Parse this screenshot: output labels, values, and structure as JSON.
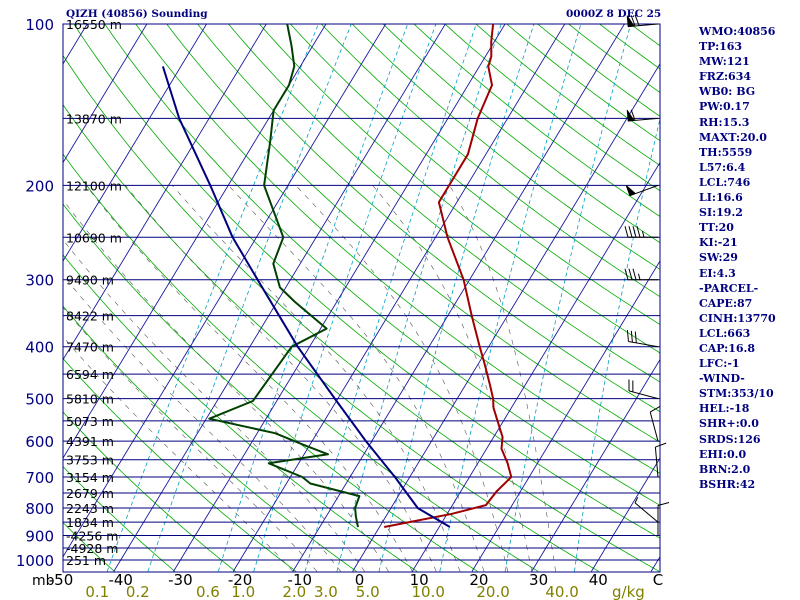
{
  "header": {
    "station": "QIZH (40856) Sounding",
    "time": "0000Z  8 DEC 25"
  },
  "indices": [
    "WMO:40856",
    "TP:163",
    "MW:121",
    "FRZ:634",
    "WB0: BG",
    "PW:0.17",
    "RH:15.3",
    "MAXT:20.0",
    "TH:5559",
    "L57:6.4",
    "LCL:746",
    "LI:16.6",
    "SI:19.2",
    "TT:20",
    "KI:-21",
    "SW:29",
    "EI:4.3",
    "-PARCEL-",
    "CAPE:87",
    "CINH:13770",
    "LCL:663",
    "CAP:16.8",
    "LFC:-1",
    "-WIND-",
    "STM:353/10",
    "HEL:-18",
    "SHR+:0.0",
    "SRDS:126",
    "EHI:0.0",
    "BRN:2.0",
    "BSHR:42"
  ],
  "colors": {
    "isobar": "#000080",
    "isotherm": "#1a1aa0",
    "dry_adiabat": "#00aa00",
    "moist_adiabat": "#555555",
    "mixing_ratio": "#00a0c0",
    "temperature": "#a00000",
    "dewpoint": "#004000",
    "parcel": "#000080",
    "x_labels": "#000000",
    "mixing_labels": "#808000"
  },
  "chart_data": {
    "type": "line",
    "title": "",
    "xlabel": "C",
    "ylabel": "mb",
    "y_scale": "log-pressure",
    "ylim": [
      1000,
      100
    ],
    "xlim": [
      -50,
      50
    ],
    "pressure_ticks": [
      {
        "p": 100,
        "label": "100"
      },
      {
        "p": 200,
        "label": "200"
      },
      {
        "p": 300,
        "label": "300"
      },
      {
        "p": 400,
        "label": "400"
      },
      {
        "p": 500,
        "label": "500"
      },
      {
        "p": 600,
        "label": "600"
      },
      {
        "p": 700,
        "label": "700"
      },
      {
        "p": 800,
        "label": "800"
      },
      {
        "p": 900,
        "label": "900"
      },
      {
        "p": 1000,
        "label": "1000"
      }
    ],
    "temperature_ticks": [
      {
        "t": -50,
        "label": "-50"
      },
      {
        "t": -40,
        "label": "-40"
      },
      {
        "t": -30,
        "label": "-30"
      },
      {
        "t": -20,
        "label": "-20"
      },
      {
        "t": -10,
        "label": "-10"
      },
      {
        "t": 0,
        "label": "0"
      },
      {
        "t": 10,
        "label": "10"
      },
      {
        "t": 20,
        "label": "20"
      },
      {
        "t": 30,
        "label": "30"
      },
      {
        "t": 40,
        "label": "40"
      }
    ],
    "mixing_ratio_ticks": [
      {
        "w": 0.1,
        "label": "0.1"
      },
      {
        "w": 0.2,
        "label": "0.2"
      },
      {
        "w": 0.6,
        "label": "0.6"
      },
      {
        "w": 1.0,
        "label": "1.0"
      },
      {
        "w": 2.0,
        "label": "2.0"
      },
      {
        "w": 3.0,
        "label": "3.0"
      },
      {
        "w": 5.0,
        "label": "5.0"
      },
      {
        "w": 10.0,
        "label": "10.0"
      },
      {
        "w": 20.0,
        "label": "20.0"
      },
      {
        "w": 40.0,
        "label": "40.0"
      }
    ],
    "mixing_ratio_unit": "g/kg",
    "height_labels": [
      {
        "p": 100,
        "label": "16550 m"
      },
      {
        "p": 150,
        "label": "13870 m"
      },
      {
        "p": 200,
        "label": "12100 m"
      },
      {
        "p": 250,
        "label": "10690 m"
      },
      {
        "p": 300,
        "label": "9490 m"
      },
      {
        "p": 350,
        "label": "8422 m"
      },
      {
        "p": 400,
        "label": "7470 m"
      },
      {
        "p": 450,
        "label": "6594 m"
      },
      {
        "p": 500,
        "label": "5810 m"
      },
      {
        "p": 550,
        "label": "5073 m"
      },
      {
        "p": 600,
        "label": "4391 m"
      },
      {
        "p": 650,
        "label": "3753 m"
      },
      {
        "p": 700,
        "label": "3154 m"
      },
      {
        "p": 750,
        "label": "2679 m"
      },
      {
        "p": 800,
        "label": "2243 m"
      },
      {
        "p": 850,
        "label": "1834 m"
      },
      {
        "p": 900,
        "label": "-4256 m"
      },
      {
        "p": 950,
        "label": "-4928 m"
      },
      {
        "p": 1000,
        "label": "251 m"
      }
    ],
    "series": [
      {
        "key": "temperature",
        "points": [
          [
            868,
            0.8
          ],
          [
            820,
            10.8
          ],
          [
            790,
            15.6
          ],
          [
            745,
            16.0
          ],
          [
            700,
            17.0
          ],
          [
            660,
            15.0
          ],
          [
            620,
            12.5
          ],
          [
            590,
            11.5
          ],
          [
            550,
            9.0
          ],
          [
            520,
            7.0
          ],
          [
            500,
            6.0
          ],
          [
            470,
            4.0
          ],
          [
            430,
            1.0
          ],
          [
            400,
            -1.5
          ],
          [
            350,
            -6.0
          ],
          [
            300,
            -11.0
          ],
          [
            250,
            -18.0
          ],
          [
            215,
            -23.0
          ],
          [
            200,
            -23.0
          ],
          [
            175,
            -23.0
          ],
          [
            150,
            -25.0
          ],
          [
            130,
            -26.0
          ],
          [
            120,
            -28.5
          ],
          [
            115,
            -29.0
          ],
          [
            108,
            -30.5
          ],
          [
            100,
            -32.0
          ]
        ]
      },
      {
        "key": "dewpoint",
        "points": [
          [
            868,
            -3.6
          ],
          [
            830,
            -5.0
          ],
          [
            800,
            -6.0
          ],
          [
            760,
            -6.5
          ],
          [
            720,
            -16.0
          ],
          [
            700,
            -18.0
          ],
          [
            660,
            -25.0
          ],
          [
            635,
            -16.0
          ],
          [
            610,
            -21.0
          ],
          [
            580,
            -27.0
          ],
          [
            545,
            -39.5
          ],
          [
            505,
            -34.0
          ],
          [
            450,
            -33.5
          ],
          [
            400,
            -33.0
          ],
          [
            370,
            -29.0
          ],
          [
            330,
            -37.0
          ],
          [
            310,
            -41.0
          ],
          [
            280,
            -44.5
          ],
          [
            250,
            -45.5
          ],
          [
            200,
            -54.0
          ],
          [
            165,
            -57.5
          ],
          [
            145,
            -60.0
          ],
          [
            130,
            -60.0
          ],
          [
            120,
            -61.0
          ],
          [
            110,
            -63.5
          ],
          [
            100,
            -66.5
          ]
        ]
      },
      {
        "key": "parcel",
        "points": [
          [
            868,
            11.8
          ],
          [
            800,
            4.5
          ],
          [
            700,
            -2.5
          ],
          [
            600,
            -11.0
          ],
          [
            500,
            -20.5
          ],
          [
            400,
            -32.0
          ],
          [
            300,
            -45.5
          ],
          [
            250,
            -54.0
          ],
          [
            200,
            -63.0
          ],
          [
            150,
            -75.0
          ],
          [
            120,
            -83.0
          ]
        ]
      }
    ],
    "wind_barbs": [
      {
        "p": 100,
        "dir": 265,
        "kt": 70
      },
      {
        "p": 150,
        "dir": 265,
        "kt": 60
      },
      {
        "p": 200,
        "dir": 250,
        "kt": 50
      },
      {
        "p": 250,
        "dir": 270,
        "kt": 45
      },
      {
        "p": 300,
        "dir": 270,
        "kt": 35
      },
      {
        "p": 400,
        "dir": 280,
        "kt": 30
      },
      {
        "p": 500,
        "dir": 285,
        "kt": 20
      },
      {
        "p": 600,
        "dir": 345,
        "kt": 10
      },
      {
        "p": 700,
        "dir": 355,
        "kt": 10
      },
      {
        "p": 850,
        "dir": 310,
        "kt": 5
      },
      {
        "p": 900,
        "dir": 0,
        "kt": 10
      }
    ]
  }
}
